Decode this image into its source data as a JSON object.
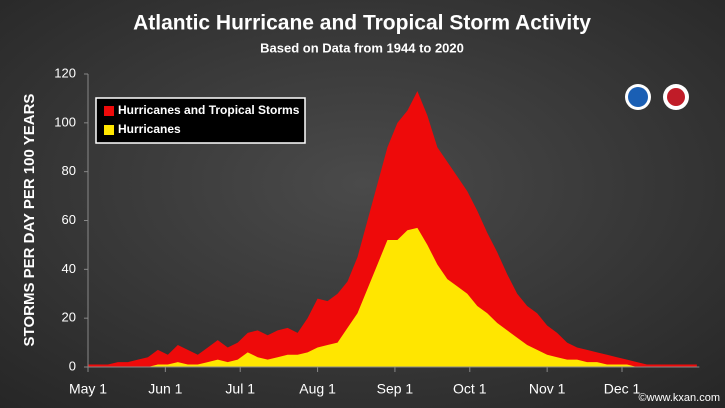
{
  "chart_data": {
    "type": "area",
    "title": "Atlantic Hurricane and Tropical Storm Activity",
    "subtitle": "Based on Data from 1944 to 2020",
    "y_label": "STORMS PER DAY PER 100 YEARS",
    "watermark": "©www.kxan.com",
    "x": [
      0,
      4,
      8,
      12,
      16,
      20,
      24,
      28,
      32,
      36,
      40,
      44,
      48,
      52,
      56,
      60,
      64,
      68,
      72,
      76,
      80,
      84,
      88,
      92,
      96,
      100,
      104,
      108,
      112,
      116,
      120,
      124,
      128,
      132,
      136,
      140,
      144,
      148,
      152,
      156,
      160,
      164,
      168,
      172,
      176,
      180,
      184,
      188,
      192,
      196,
      200,
      204,
      208,
      212,
      216,
      220,
      224,
      228,
      232,
      236,
      240,
      244
    ],
    "xlim": [
      0,
      245
    ],
    "xticks": [
      {
        "value": 0,
        "label": "May 1"
      },
      {
        "value": 31,
        "label": "Jun 1"
      },
      {
        "value": 61,
        "label": "Jul 1"
      },
      {
        "value": 92,
        "label": "Aug 1"
      },
      {
        "value": 123,
        "label": "Sep 1"
      },
      {
        "value": 153,
        "label": "Oct 1"
      },
      {
        "value": 184,
        "label": "Nov 1"
      },
      {
        "value": 214,
        "label": "Dec 1"
      }
    ],
    "ylim": [
      0,
      120
    ],
    "yticks": [
      0,
      20,
      40,
      60,
      80,
      100,
      120
    ],
    "grid": false,
    "legend": "top-left",
    "series": [
      {
        "name": "Hurricanes and Tropical Storms",
        "color": "#ee0a0a",
        "values": [
          1,
          1,
          1,
          2,
          2,
          3,
          4,
          7,
          5,
          9,
          7,
          5,
          8,
          11,
          8,
          10,
          14,
          15,
          13,
          15,
          16,
          14,
          20,
          28,
          27,
          30,
          35,
          45,
          60,
          75,
          90,
          100,
          105,
          113,
          103,
          90,
          84,
          78,
          72,
          64,
          55,
          47,
          38,
          30,
          25,
          22,
          17,
          14,
          10,
          8,
          7,
          6,
          5,
          4,
          3,
          2,
          1,
          1,
          1,
          1,
          1,
          1
        ]
      },
      {
        "name": "Hurricanes",
        "color": "#ffe600",
        "values": [
          0,
          0,
          0,
          0,
          0,
          0,
          0,
          1,
          1,
          2,
          1,
          1,
          2,
          3,
          2,
          3,
          6,
          4,
          3,
          4,
          5,
          5,
          6,
          8,
          9,
          10,
          16,
          22,
          32,
          42,
          52,
          52,
          56,
          57,
          50,
          42,
          36,
          33,
          30,
          25,
          22,
          18,
          15,
          12,
          9,
          7,
          5,
          4,
          3,
          3,
          2,
          2,
          1,
          1,
          1,
          0,
          0,
          0,
          0,
          0,
          0,
          0
        ]
      }
    ]
  }
}
